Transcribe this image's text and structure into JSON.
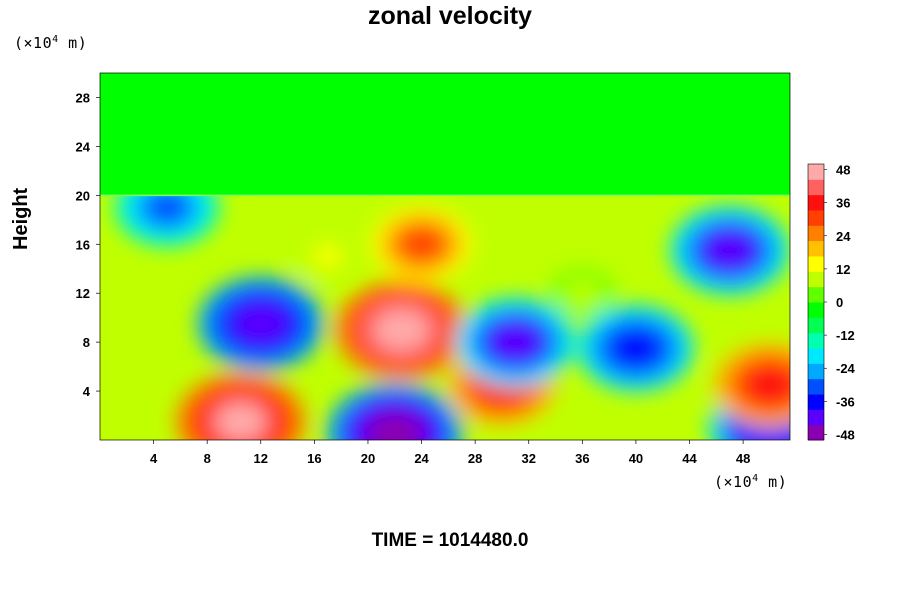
{
  "chart_data": {
    "type": "heatmap",
    "title": "zonal velocity",
    "ylabel": "Height",
    "y_unit_prefix": "(×10",
    "y_unit_exp": "4",
    "y_unit_suffix": " m)",
    "x_unit_prefix": "(×10",
    "x_unit_exp": "4",
    "x_unit_suffix": " m)",
    "xlim": [
      0,
      51.5
    ],
    "ylim": [
      0,
      30
    ],
    "xticks": [
      "4",
      "8",
      "12",
      "16",
      "20",
      "24",
      "28",
      "32",
      "36",
      "40",
      "44",
      "48"
    ],
    "yticks": [
      "4",
      "8",
      "12",
      "16",
      "20",
      "24",
      "28"
    ],
    "colorbar": {
      "range": [
        -50,
        50
      ],
      "ticks": [
        "48",
        "36",
        "24",
        "12",
        "0",
        "-12",
        "-24",
        "-36",
        "-48"
      ],
      "tick_values": [
        48,
        36,
        24,
        12,
        0,
        -12,
        -24,
        -36,
        -48
      ],
      "colors": [
        "#8a00b0",
        "#5a00ff",
        "#0000ff",
        "#0050ff",
        "#00a8ff",
        "#00e8ff",
        "#00ffb0",
        "#00ff50",
        "#00ff00",
        "#60ff00",
        "#c0ff00",
        "#ffff00",
        "#ffc000",
        "#ff8000",
        "#ff4000",
        "#ff1010",
        "#ff6060",
        "#ffaaaa"
      ]
    },
    "region_above_20": {
      "value": 0,
      "color": "#00ff00"
    },
    "features": [
      {
        "x": 22.5,
        "y": 9.0,
        "value": 48
      },
      {
        "x": 24.0,
        "y": 16.0,
        "value": 30
      },
      {
        "x": 10.5,
        "y": 1.5,
        "value": 46
      },
      {
        "x": 30.0,
        "y": 4.5,
        "value": 34
      },
      {
        "x": 22.0,
        "y": 0.5,
        "value": -50
      },
      {
        "x": 12.0,
        "y": 9.5,
        "value": -44
      },
      {
        "x": 47.0,
        "y": 15.5,
        "value": -40
      },
      {
        "x": 40.0,
        "y": 7.5,
        "value": -38
      },
      {
        "x": 31.0,
        "y": 8.0,
        "value": -40
      },
      {
        "x": 5.0,
        "y": 19.0,
        "value": -32
      },
      {
        "x": 50.0,
        "y": 1.0,
        "value": -42
      },
      {
        "x": 50.0,
        "y": 4.5,
        "value": 36
      },
      {
        "x": 17.0,
        "y": 15.0,
        "value": 12
      },
      {
        "x": 36.0,
        "y": 12.0,
        "value": 8
      }
    ]
  },
  "time_label": "TIME = 1014480.0"
}
